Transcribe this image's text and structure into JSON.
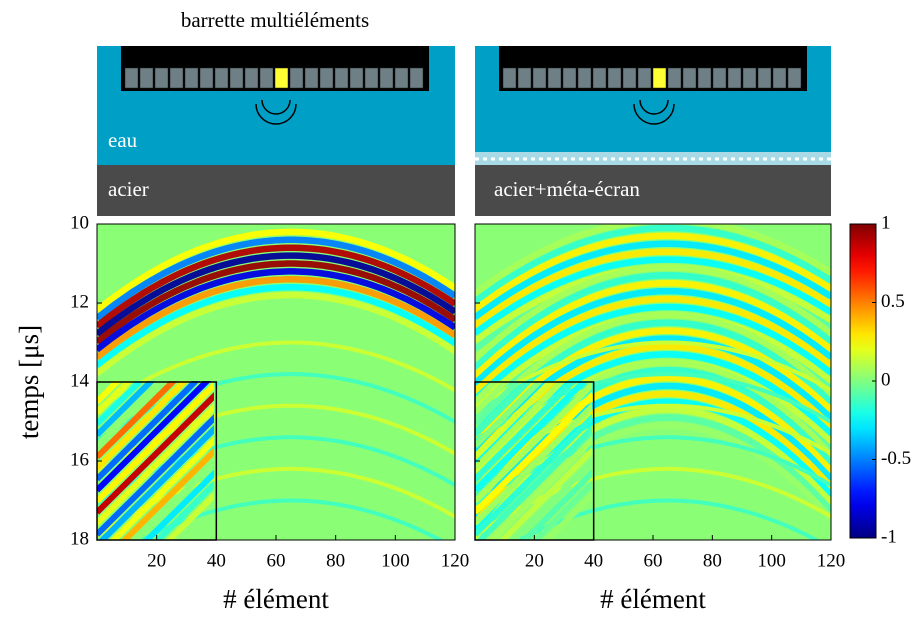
{
  "schematic": {
    "title": "barrette multiéléments",
    "water": "eau",
    "solid_left": "acier",
    "solid_right": "acier+méta-écran"
  },
  "chart_data": {
    "type": "heatmap",
    "ylabel": "temps [μs]",
    "xlabel": "# élément",
    "xlim": [
      0,
      120
    ],
    "xticks": [
      20,
      40,
      60,
      80,
      100,
      120
    ],
    "ylim": [
      10,
      18
    ],
    "yticks": [
      10,
      12,
      14,
      16,
      18
    ],
    "y_inverted": true,
    "inset": {
      "xlim": [
        0,
        40
      ],
      "ylim": [
        14,
        18
      ]
    },
    "colorbar": {
      "colormap": "jet",
      "lim": [
        -1,
        1
      ],
      "ticks": [
        1,
        0.5,
        0,
        -0.5,
        -1
      ]
    }
  }
}
